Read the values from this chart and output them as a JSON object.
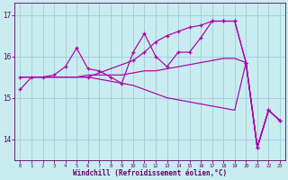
{
  "background_color": "#c8ecf0",
  "grid_color": "#a8d0dc",
  "line_color": "#aa00aa",
  "xlabel": "Windchill (Refroidissement éolien,°C)",
  "xlabel_color": "#660066",
  "tick_color": "#660066",
  "ylim": [
    13.5,
    17.3
  ],
  "xlim": [
    -0.5,
    23.5
  ],
  "yticks": [
    14,
    15,
    16,
    17
  ],
  "xticks": [
    0,
    1,
    2,
    3,
    4,
    5,
    6,
    7,
    8,
    9,
    10,
    11,
    12,
    13,
    14,
    15,
    16,
    17,
    18,
    19,
    20,
    21,
    22,
    23
  ],
  "line_spiky_x": [
    0,
    1,
    2,
    3,
    4,
    5,
    6,
    7,
    8,
    9,
    10,
    11,
    12,
    13,
    14,
    15,
    16,
    17,
    18,
    19,
    20,
    21,
    22,
    23
  ],
  "line_spiky_y": [
    15.2,
    15.5,
    15.5,
    15.55,
    15.75,
    16.2,
    15.7,
    15.65,
    15.5,
    15.35,
    16.1,
    16.55,
    16.0,
    15.75,
    16.1,
    16.1,
    16.45,
    16.85,
    16.85,
    16.85,
    15.85,
    13.8,
    14.7,
    14.45
  ],
  "line_rising_x": [
    0,
    6,
    10,
    11,
    12,
    13,
    14,
    15,
    16,
    17,
    18,
    19,
    20,
    21,
    22,
    23
  ],
  "line_rising_y": [
    15.5,
    15.5,
    15.9,
    16.1,
    16.35,
    16.5,
    16.6,
    16.7,
    16.75,
    16.85,
    16.85,
    16.85,
    15.85,
    13.8,
    14.7,
    14.45
  ],
  "line_flat_x": [
    0,
    1,
    2,
    3,
    4,
    5,
    6,
    7,
    8,
    9,
    10,
    11,
    12,
    13,
    14,
    15,
    16,
    17,
    18,
    19,
    20,
    21,
    22,
    23
  ],
  "line_flat_y": [
    15.5,
    15.5,
    15.5,
    15.5,
    15.5,
    15.5,
    15.55,
    15.55,
    15.55,
    15.55,
    15.6,
    15.65,
    15.65,
    15.7,
    15.75,
    15.8,
    15.85,
    15.9,
    15.95,
    15.95,
    15.85,
    13.8,
    14.7,
    14.45
  ],
  "line_falling_x": [
    0,
    6,
    10,
    11,
    12,
    13,
    14,
    15,
    16,
    17,
    18,
    19,
    20,
    21,
    22,
    23
  ],
  "line_falling_y": [
    15.5,
    15.5,
    15.3,
    15.2,
    15.1,
    15.0,
    14.95,
    14.9,
    14.85,
    14.8,
    14.75,
    14.7,
    15.85,
    13.8,
    14.7,
    14.45
  ]
}
